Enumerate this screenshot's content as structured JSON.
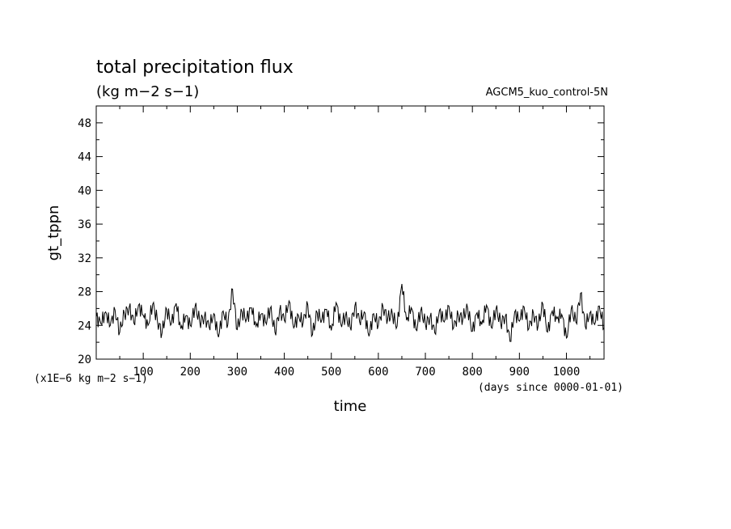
{
  "chart_data": {
    "type": "line",
    "title": "total precipitation flux",
    "subtitle": "(kg m−2 s−1)",
    "dataset_label": "AGCM5_kuo_control-5N",
    "xlabel": "time",
    "ylabel": "gt_tppn",
    "x_unit_label": "(days since 0000-01-01)",
    "y_unit_label": "(x1E−6 kg m−2 s−1)",
    "xlim": [
      0,
      1080
    ],
    "ylim": [
      20,
      50
    ],
    "x_ticks": [
      100,
      200,
      300,
      400,
      500,
      600,
      700,
      800,
      900,
      1000
    ],
    "y_ticks": [
      20,
      24,
      28,
      32,
      36,
      40,
      44,
      48
    ],
    "line_color": "#000000",
    "series": [
      {
        "x": [
          0,
          10,
          20,
          30,
          40,
          50,
          60,
          70,
          80,
          90,
          100,
          110,
          120,
          130,
          140,
          150,
          160,
          170,
          180,
          190,
          200,
          210,
          220,
          230,
          240,
          250,
          260,
          270,
          280,
          290,
          300,
          310,
          320,
          330,
          340,
          350,
          360,
          370,
          380,
          390,
          400,
          410,
          420,
          430,
          440,
          450,
          460,
          470,
          480,
          490,
          500,
          510,
          520,
          530,
          540,
          550,
          560,
          570,
          580,
          590,
          600,
          610,
          620,
          630,
          640,
          650,
          660,
          670,
          680,
          690,
          700,
          710,
          720,
          730,
          740,
          750,
          760,
          770,
          780,
          790,
          800,
          810,
          820,
          830,
          840,
          850,
          860,
          870,
          880,
          890,
          900,
          910,
          920,
          930,
          940,
          950,
          960,
          970,
          980,
          990,
          1000,
          1010,
          1020,
          1030,
          1040,
          1050,
          1060,
          1070,
          1080
        ],
        "values": [
          25.0,
          24.2,
          25.6,
          24.0,
          25.8,
          23.2,
          25.4,
          26.1,
          24.3,
          26.4,
          25.2,
          24.0,
          26.5,
          24.6,
          23.1,
          25.9,
          24.2,
          26.6,
          23.6,
          25.1,
          24.0,
          26.2,
          24.5,
          25.0,
          23.8,
          25.4,
          22.6,
          25.7,
          24.1,
          28.3,
          23.5,
          25.6,
          24.8,
          26.1,
          23.9,
          25.3,
          24.4,
          26.0,
          23.2,
          25.8,
          24.6,
          26.9,
          23.7,
          25.2,
          24.3,
          26.4,
          22.9,
          25.5,
          24.7,
          25.9,
          23.4,
          26.7,
          24.2,
          25.1,
          23.8,
          26.3,
          24.5,
          25.6,
          22.7,
          25.4,
          24.0,
          26.2,
          24.8,
          25.3,
          23.9,
          28.9,
          24.6,
          26.1,
          23.5,
          25.7,
          24.2,
          25.0,
          23.1,
          25.8,
          24.4,
          26.3,
          23.7,
          25.2,
          24.9,
          26.0,
          23.3,
          25.5,
          24.1,
          26.4,
          23.8,
          25.9,
          24.3,
          25.1,
          22.1,
          25.6,
          24.5,
          26.2,
          23.6,
          25.4,
          24.0,
          26.5,
          23.2,
          25.7,
          24.8,
          25.3,
          22.5,
          25.9,
          24.4,
          27.8,
          23.9,
          25.5,
          24.1,
          26.3,
          23.7
        ]
      }
    ]
  }
}
